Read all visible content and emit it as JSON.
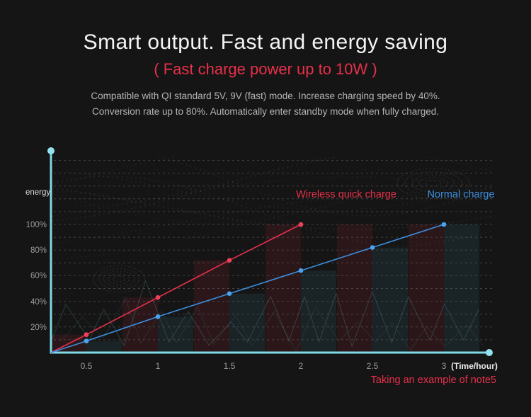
{
  "header": {
    "title": "Smart output. Fast and energy saving",
    "subtitle": "( Fast charge power up to 10W )",
    "description_line1": "Compatible with  QI standard 5V, 9V (fast) mode. Increase charging speed by  40%.",
    "description_line2": "Conversion rate up to 80%. Automatically enter standby mode when fully charged."
  },
  "chart": {
    "ylabel": "energy",
    "ytick_labels": [
      "20%",
      "40%",
      "60%",
      "80%",
      "100%"
    ],
    "xtick_labels": [
      "0.5",
      "1",
      "1.5",
      "2",
      "2.5",
      "3"
    ],
    "xlabel": "(Time/hour)",
    "legend": [
      {
        "label": "Wireless quick charge",
        "color": "#e8304a"
      },
      {
        "label": "Normal charge",
        "color": "#3c8fe0"
      }
    ],
    "footnote": "Taking an example of note5"
  },
  "chart_data": {
    "type": "line",
    "x": [
      0.5,
      1,
      1.5,
      2,
      2.5,
      3
    ],
    "x_unit": "hour",
    "xlabel": "(Time/hour)",
    "ylabel": "energy",
    "ylim_pct": [
      0,
      150
    ],
    "grid_step_pct": 10,
    "ytick_pct": [
      20,
      40,
      60,
      80,
      100
    ],
    "lines_start_at_axis_origin": true,
    "series": [
      {
        "name": "Wireless quick charge",
        "color": "#e8304a",
        "point_color": "#ef4258",
        "values_pct": [
          14,
          43,
          72,
          100,
          null,
          null
        ]
      },
      {
        "name": "Normal charge",
        "color": "#3c8fe0",
        "point_color": "#4aa3f0",
        "values_pct": [
          9,
          28,
          46,
          64,
          82,
          100
        ]
      }
    ],
    "background_bars": {
      "wireless_pct": [
        14,
        43,
        72,
        100,
        100,
        100
      ],
      "normal_pct": [
        9,
        28,
        46,
        64,
        82,
        100
      ],
      "wireless_color": "rgba(232,48,74,0.11)",
      "normal_color": "rgba(79,179,200,0.09)"
    },
    "annotation": "Taking an example of note5"
  },
  "colors": {
    "background": "#151515",
    "axis": "#7fd9e8",
    "axis_dot": "#93e2f0",
    "grid": "#9a9a9a",
    "wireless": "#e8304a",
    "normal": "#3c8fe0",
    "title_text": "#f4f4f4",
    "body_text": "#b5b5b5",
    "decor_dots": "#8d8d8d",
    "decor_zigzag": "#5d9096"
  }
}
